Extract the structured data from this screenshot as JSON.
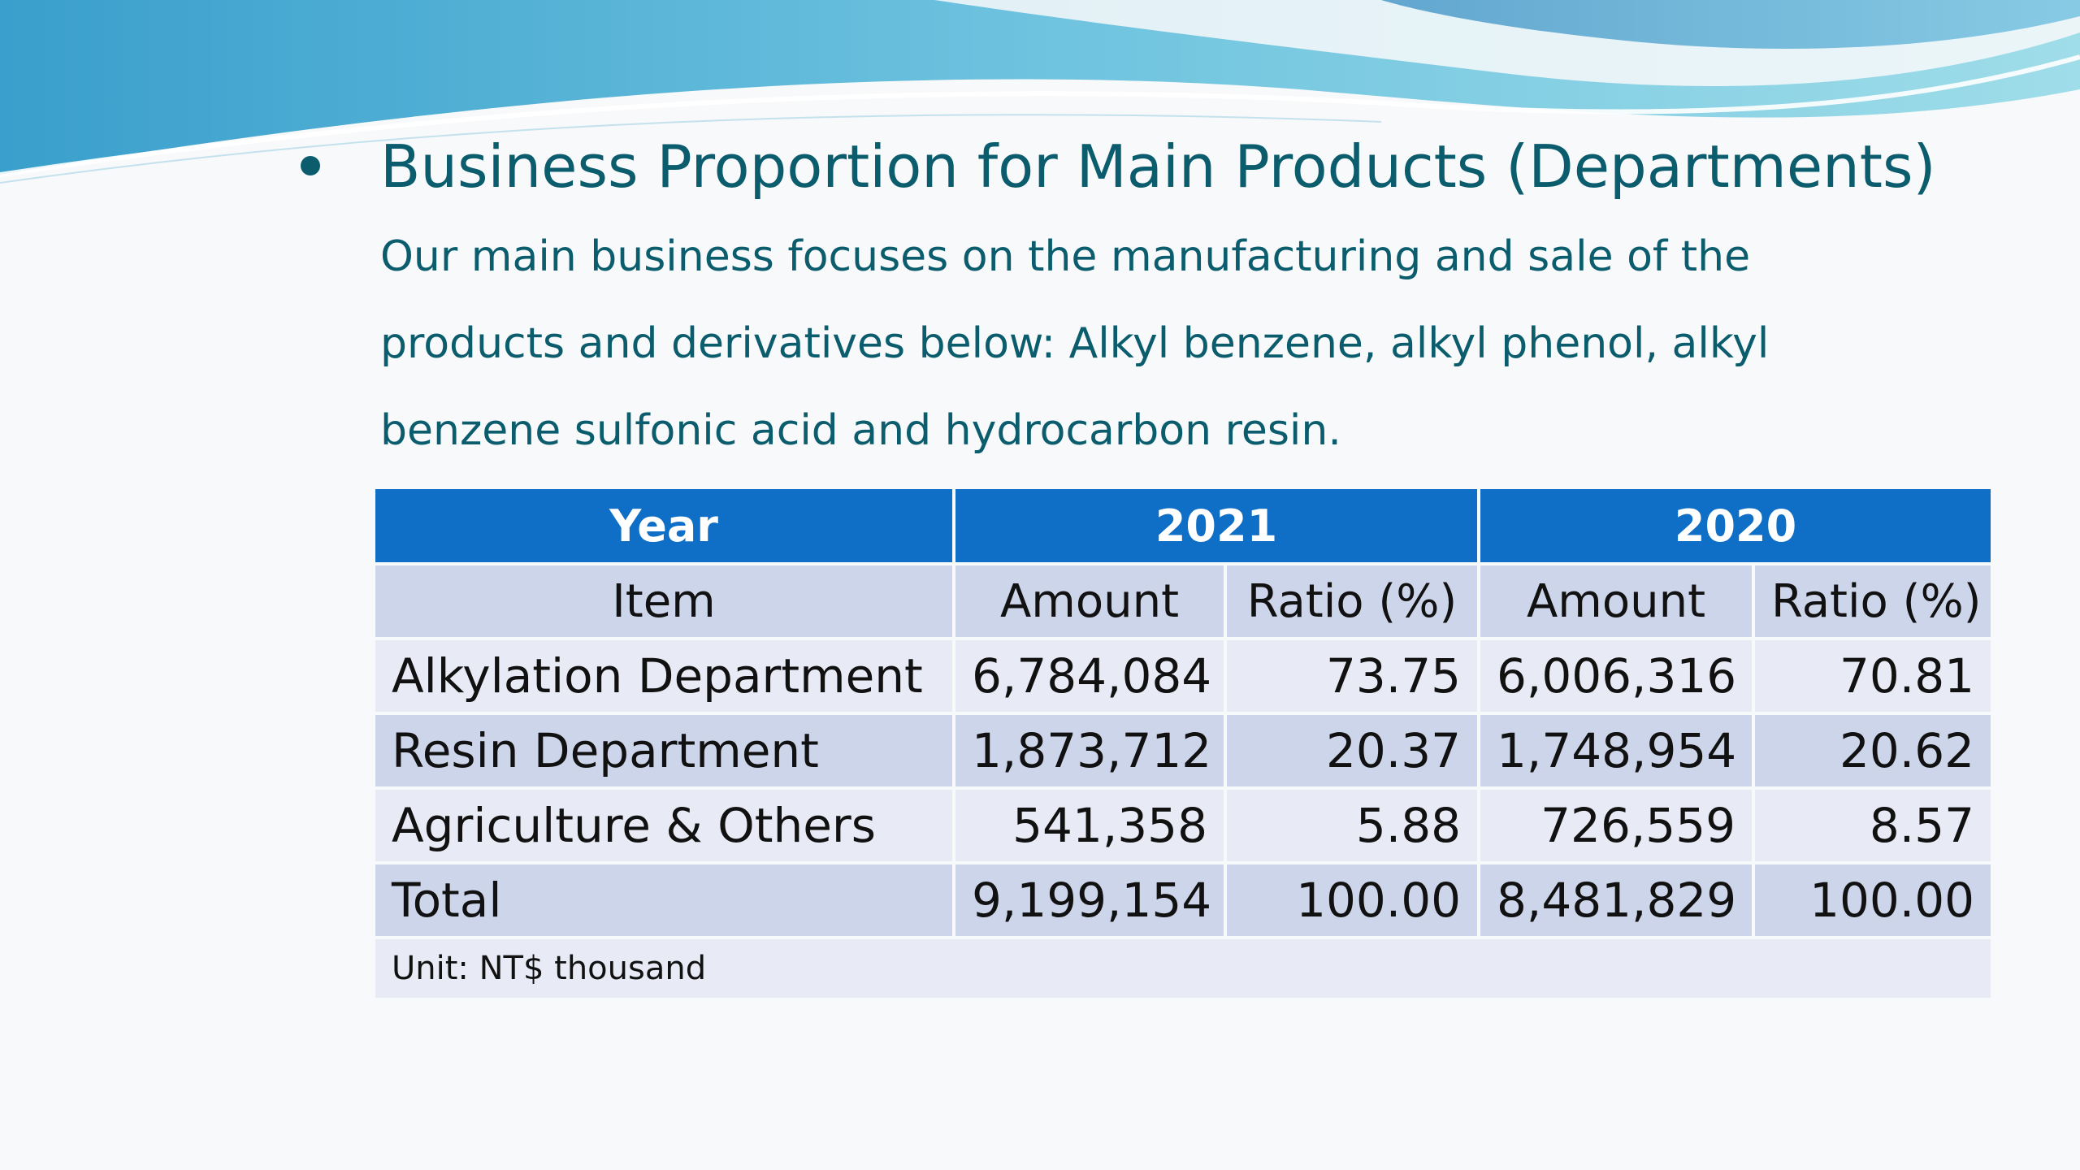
{
  "slide": {
    "title": "Business Proportion for Main Products (Departments)",
    "description": "Our main business focuses on the manufacturing and sale of the products and derivatives below: Alkyl benzene, alkyl phenol, alkyl benzene sulfonic acid and hydrocarbon resin."
  },
  "colors": {
    "title_text": "#0b5d6e",
    "table_header": "#0f6ec6",
    "row_light": "#e8ebf5",
    "row_dark": "#cdd5ea"
  },
  "table": {
    "year_label": "Year",
    "years": [
      "2021",
      "2020"
    ],
    "item_label": "Item",
    "amount_label": "Amount",
    "ratio_label": "Ratio (%)",
    "rows": [
      {
        "item": "Alkylation Department",
        "amount_2021": "6,784,084",
        "ratio_2021": "73.75",
        "amount_2020": "6,006,316",
        "ratio_2020": "70.81"
      },
      {
        "item": "Resin Department",
        "amount_2021": "1,873,712",
        "ratio_2021": "20.37",
        "amount_2020": "1,748,954",
        "ratio_2020": "20.62"
      },
      {
        "item": "Agriculture & Others",
        "amount_2021": "541,358",
        "ratio_2021": "5.88",
        "amount_2020": "726,559",
        "ratio_2020": "8.57"
      },
      {
        "item": "Total",
        "amount_2021": "9,199,154",
        "ratio_2021": "100.00",
        "amount_2020": "8,481,829",
        "ratio_2020": "100.00"
      }
    ],
    "unit_note": "Unit: NT$ thousand"
  }
}
